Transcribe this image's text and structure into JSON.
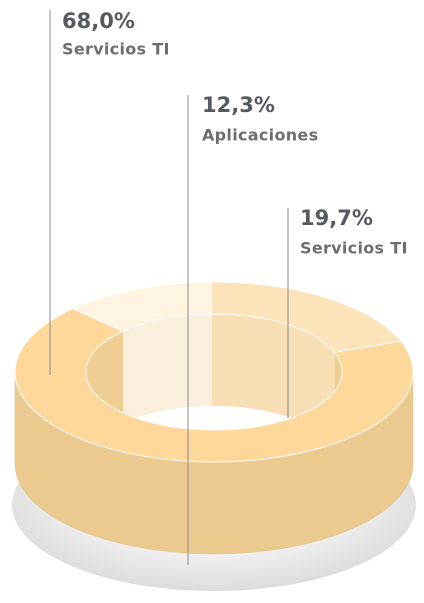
{
  "chart_data": {
    "type": "donut3d",
    "categories": [
      "Servicios TI",
      "Aplicaciones",
      "Servicios TI"
    ],
    "values": [
      68.0,
      12.3,
      19.7
    ],
    "value_labels": [
      "68,0%",
      "12,3%",
      "19,7%"
    ],
    "colors": [
      "#fdd89a",
      "#fff4e2",
      "#fde3b9"
    ]
  }
}
